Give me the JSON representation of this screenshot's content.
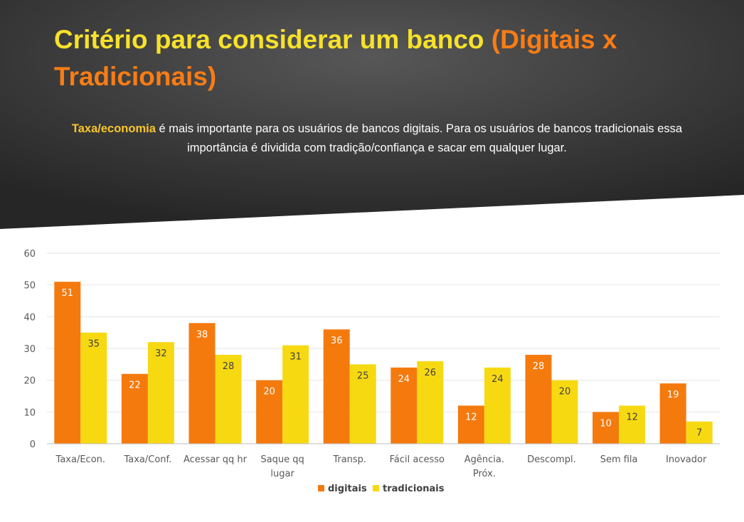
{
  "slide": {
    "title_main": "Critério para considerar um banco",
    "title_accent": "(Digitais x Tradicionais)",
    "subtitle_highlight": "Taxa/economia",
    "subtitle_rest": "é mais importante para os usuários de bancos digitais. Para os usuários de bancos tradicionais essa importância é dividida com tradição/confiança e sacar em qualquer lugar."
  },
  "colors": {
    "digitais": "#f47a0e",
    "tradicionais": "#f7d912",
    "title": "#f7e12a",
    "accent": "#f97c14",
    "label_dark_bar": "#ffffff",
    "label_light_bar": "#404040"
  },
  "chart_data": {
    "type": "bar",
    "categories": [
      [
        "Taxa/Econ."
      ],
      [
        "Taxa/Conf."
      ],
      [
        "Acessar qq hr"
      ],
      [
        "Saque qq",
        "lugar"
      ],
      [
        "Transp."
      ],
      [
        "Fácil acesso"
      ],
      [
        "Agência.",
        "Próx."
      ],
      [
        "Descompl."
      ],
      [
        "Sem fila"
      ],
      [
        "Inovador"
      ]
    ],
    "series": [
      {
        "name": "digitais",
        "values": [
          51,
          22,
          38,
          20,
          36,
          24,
          12,
          28,
          10,
          19
        ]
      },
      {
        "name": "tradicionais",
        "values": [
          35,
          32,
          28,
          31,
          25,
          26,
          24,
          20,
          12,
          7
        ]
      }
    ],
    "ylim": [
      0,
      60
    ],
    "yticks": [
      0,
      10,
      20,
      30,
      40,
      50,
      60
    ],
    "grid": true,
    "legend": "bottom-center",
    "data_labels": true
  }
}
